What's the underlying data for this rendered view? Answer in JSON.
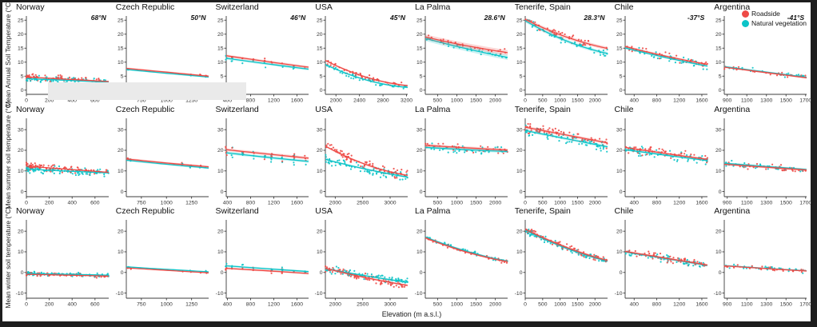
{
  "legend": {
    "items": [
      {
        "label": "Roadside",
        "color": "#ee4a46"
      },
      {
        "label": "Natural vegetation",
        "color": "#0cc4c8"
      }
    ]
  },
  "figure": {
    "xlabel": "Elevation (m a.s.l.)",
    "rows": [
      {
        "key": "annual",
        "ylabel": "Mean Annual Soil Temperature (°C)",
        "ylim": [
          -1.5,
          26.5
        ],
        "yticks": [
          0,
          5,
          10,
          15,
          20,
          25
        ]
      },
      {
        "key": "summer",
        "ylabel": "Mean summer soil temperature (°C)",
        "ylim": [
          -2.5,
          35.5
        ],
        "yticks": [
          0,
          10,
          20,
          30
        ]
      },
      {
        "key": "winter",
        "ylabel": "Mean winter soil temperature (°C)",
        "ylim": [
          -12.5,
          25.5
        ],
        "yticks": [
          -10,
          0,
          10,
          20
        ]
      }
    ],
    "columns": [
      "Norway",
      "Czech Republic",
      "Switzerland",
      "USA",
      "La Palma",
      "Tenerife, Spain",
      "Chile",
      "Argentina"
    ],
    "latitudes": [
      "68°N",
      "50°N",
      "46°N",
      "45°N",
      "28.6°N",
      "28.3°N",
      "-37°S",
      "-41°S"
    ],
    "artifact_overlay": {
      "note": "light gray box obscuring x-axis of row 1 columns 1-3",
      "color": "#eaeaea"
    }
  },
  "chart_data": [
    {
      "type": "scatter",
      "row": 0,
      "col": 0,
      "country": "Norway",
      "latitude": "68°N",
      "xlim": [
        0,
        720
      ],
      "xticks": [
        0,
        200,
        400,
        600
      ],
      "series": [
        {
          "name": "Roadside",
          "trend": [
            4.7,
            3.9,
            3.1
          ]
        },
        {
          "name": "Natural vegetation",
          "trend": [
            4.1,
            3.5,
            2.8
          ]
        }
      ],
      "points": {
        "n": 160,
        "spread": 1.4,
        "xdist": "left"
      },
      "band": 0.25
    },
    {
      "type": "scatter",
      "row": 0,
      "col": 1,
      "country": "Czech Republic",
      "latitude": "50°N",
      "xlim": [
        600,
        1420
      ],
      "xticks": [
        750,
        1000,
        1250
      ],
      "series": [
        {
          "name": "Roadside",
          "trend": [
            7.8,
            6.4,
            5.0
          ]
        },
        {
          "name": "Natural vegetation",
          "trend": [
            7.4,
            6.0,
            4.7
          ]
        }
      ],
      "points": {
        "n": 16,
        "spread": 0.5,
        "xdist": "sites",
        "sites": [
          0.02,
          0.05,
          0.68,
          0.78,
          0.9,
          0.97
        ]
      },
      "band": 0.3
    },
    {
      "type": "scatter",
      "row": 0,
      "col": 2,
      "country": "Switzerland",
      "latitude": "46°N",
      "xlim": [
        380,
        1800
      ],
      "xticks": [
        400,
        800,
        1200,
        1600
      ],
      "series": [
        {
          "name": "Roadside",
          "trend": [
            12.3,
            10.2,
            8.2
          ]
        },
        {
          "name": "Natural vegetation",
          "trend": [
            11.4,
            9.4,
            7.5
          ]
        }
      ],
      "points": {
        "n": 30,
        "spread": 1.5,
        "xdist": "sites",
        "sites": [
          0.0,
          0.07,
          0.2,
          0.33,
          0.47,
          0.55,
          0.68,
          0.82,
          0.96
        ]
      },
      "band": 0.45
    },
    {
      "type": "scatter",
      "row": 0,
      "col": 3,
      "country": "USA",
      "latitude": "45°N",
      "xlim": [
        1820,
        3220
      ],
      "xticks": [
        2000,
        2400,
        2800,
        3200
      ],
      "series": [
        {
          "name": "Roadside",
          "trend": [
            10.6,
            4.6,
            1.6
          ]
        },
        {
          "name": "Natural vegetation",
          "trend": [
            9.2,
            3.6,
            1.0
          ]
        }
      ],
      "points": {
        "n": 90,
        "spread": 1.3,
        "xdist": "uniform"
      },
      "band": 0.35
    },
    {
      "type": "scatter",
      "row": 0,
      "col": 4,
      "country": "La Palma",
      "latitude": "28.6°N",
      "xlim": [
        180,
        2320
      ],
      "xticks": [
        500,
        1000,
        1500,
        2000
      ],
      "series": [
        {
          "name": "Roadside",
          "trend": [
            19.0,
            15.9,
            13.4
          ]
        },
        {
          "name": "Natural vegetation",
          "trend": [
            18.5,
            14.8,
            11.7
          ]
        }
      ],
      "points": {
        "n": 55,
        "spread": 1.3,
        "xdist": "uniform"
      },
      "band": 0.9
    },
    {
      "type": "scatter",
      "row": 0,
      "col": 5,
      "country": "Tenerife, Spain",
      "latitude": "28.3°N",
      "xlim": [
        0,
        2360
      ],
      "xticks": [
        0,
        500,
        1000,
        1500,
        2000
      ],
      "series": [
        {
          "name": "Roadside",
          "trend": [
            25.3,
            19.0,
            14.9
          ]
        },
        {
          "name": "Natural vegetation",
          "trend": [
            24.8,
            17.6,
            13.1
          ]
        }
      ],
      "points": {
        "n": 95,
        "spread": 1.6,
        "xdist": "uniform"
      },
      "band": 0.6
    },
    {
      "type": "scatter",
      "row": 0,
      "col": 6,
      "country": "Chile",
      "latitude": "-37°S",
      "xlim": [
        240,
        1700
      ],
      "xticks": [
        400,
        800,
        1200,
        1600
      ],
      "series": [
        {
          "name": "Roadside",
          "trend": [
            15.6,
            12.1,
            9.2
          ]
        },
        {
          "name": "Natural vegetation",
          "trend": [
            15.1,
            11.6,
            8.6
          ]
        }
      ],
      "points": {
        "n": 85,
        "spread": 1.8,
        "xdist": "uniform"
      },
      "band": 0.4
    },
    {
      "type": "scatter",
      "row": 0,
      "col": 7,
      "country": "Argentina",
      "latitude": "-41°S",
      "xlim": [
        870,
        1710
      ],
      "xticks": [
        900,
        1100,
        1300,
        1500,
        1700
      ],
      "series": [
        {
          "name": "Roadside",
          "trend": [
            8.2,
            6.3,
            4.4
          ]
        },
        {
          "name": "Natural vegetation",
          "trend": [
            8.4,
            6.5,
            4.6
          ]
        }
      ],
      "points": {
        "n": 45,
        "spread": 1.0,
        "xdist": "uniform"
      },
      "band": 0.3
    },
    {
      "type": "scatter",
      "row": 1,
      "col": 0,
      "country": "Norway",
      "xlim": [
        0,
        720
      ],
      "xticks": [
        0,
        200,
        400,
        600
      ],
      "series": [
        {
          "name": "Roadside",
          "trend": [
            12.3,
            10.8,
            9.3
          ]
        },
        {
          "name": "Natural vegetation",
          "trend": [
            10.9,
            9.9,
            9.0
          ]
        }
      ],
      "points": {
        "n": 200,
        "spread": 2.2,
        "xdist": "left"
      },
      "band": 0.3
    },
    {
      "type": "scatter",
      "row": 1,
      "col": 1,
      "country": "Czech Republic",
      "xlim": [
        600,
        1420
      ],
      "xticks": [
        750,
        1000,
        1250
      ],
      "series": [
        {
          "name": "Roadside",
          "trend": [
            15.8,
            13.8,
            12.0
          ]
        },
        {
          "name": "Natural vegetation",
          "trend": [
            15.2,
            13.2,
            11.4
          ]
        }
      ],
      "points": {
        "n": 24,
        "spread": 1.2,
        "xdist": "sites",
        "sites": [
          0.02,
          0.05,
          0.68,
          0.78,
          0.9,
          0.97
        ]
      },
      "band": 0.5
    },
    {
      "type": "scatter",
      "row": 1,
      "col": 2,
      "country": "Switzerland",
      "xlim": [
        380,
        1800
      ],
      "xticks": [
        400,
        800,
        1200,
        1600
      ],
      "series": [
        {
          "name": "Roadside",
          "trend": [
            20.3,
            18.2,
            16.2
          ]
        },
        {
          "name": "Natural vegetation",
          "trend": [
            18.8,
            16.6,
            14.6
          ]
        }
      ],
      "points": {
        "n": 55,
        "spread": 3.2,
        "xdist": "sites",
        "sites": [
          0.0,
          0.07,
          0.2,
          0.33,
          0.47,
          0.55,
          0.68,
          0.82,
          0.96
        ]
      },
      "band": 0.7
    },
    {
      "type": "scatter",
      "row": 1,
      "col": 3,
      "country": "USA",
      "xlim": [
        1820,
        3320
      ],
      "xticks": [
        2000,
        2500,
        3000
      ],
      "series": [
        {
          "name": "Roadside",
          "trend": [
            22.0,
            13.0,
            7.8
          ]
        },
        {
          "name": "Natural vegetation",
          "trend": [
            15.6,
            10.8,
            7.0
          ]
        }
      ],
      "points": {
        "n": 160,
        "spread": 3.0,
        "xdist": "uniform"
      },
      "band": 0.5
    },
    {
      "type": "scatter",
      "row": 1,
      "col": 4,
      "country": "La Palma",
      "xlim": [
        180,
        2320
      ],
      "xticks": [
        500,
        1000,
        1500,
        2000
      ],
      "series": [
        {
          "name": "Roadside",
          "trend": [
            22.4,
            21.2,
            20.1
          ]
        },
        {
          "name": "Natural vegetation",
          "trend": [
            21.4,
            20.3,
            19.4
          ]
        }
      ],
      "points": {
        "n": 70,
        "spread": 2.4,
        "xdist": "uniform"
      },
      "band": 0.7
    },
    {
      "type": "scatter",
      "row": 1,
      "col": 5,
      "country": "Tenerife, Spain",
      "xlim": [
        0,
        2360
      ],
      "xticks": [
        0,
        500,
        1000,
        1500,
        2000
      ],
      "series": [
        {
          "name": "Roadside",
          "trend": [
            31.2,
            27.4,
            23.6
          ]
        },
        {
          "name": "Natural vegetation",
          "trend": [
            29.6,
            25.6,
            21.7
          ]
        }
      ],
      "points": {
        "n": 130,
        "spread": 3.0,
        "xdist": "uniform"
      },
      "band": 0.7
    },
    {
      "type": "scatter",
      "row": 1,
      "col": 6,
      "country": "Chile",
      "xlim": [
        240,
        1700
      ],
      "xticks": [
        400,
        800,
        1200,
        1600
      ],
      "series": [
        {
          "name": "Roadside",
          "trend": [
            21.4,
            18.4,
            15.6
          ]
        },
        {
          "name": "Natural vegetation",
          "trend": [
            20.3,
            17.6,
            15.0
          ]
        }
      ],
      "points": {
        "n": 120,
        "spread": 2.8,
        "xdist": "uniform"
      },
      "band": 0.5
    },
    {
      "type": "scatter",
      "row": 1,
      "col": 7,
      "country": "Argentina",
      "xlim": [
        870,
        1710
      ],
      "xticks": [
        900,
        1100,
        1300,
        1500,
        1700
      ],
      "series": [
        {
          "name": "Roadside",
          "trend": [
            13.2,
            11.8,
            10.4
          ]
        },
        {
          "name": "Natural vegetation",
          "trend": [
            13.7,
            12.2,
            10.7
          ]
        }
      ],
      "points": {
        "n": 60,
        "spread": 2.0,
        "xdist": "uniform"
      },
      "band": 0.5
    },
    {
      "type": "scatter",
      "row": 2,
      "col": 0,
      "country": "Norway",
      "xlim": [
        0,
        720
      ],
      "xticks": [
        0,
        200,
        400,
        600
      ],
      "series": [
        {
          "name": "Roadside",
          "trend": [
            -0.9,
            -1.3,
            -1.8
          ]
        },
        {
          "name": "Natural vegetation",
          "trend": [
            -0.5,
            -0.9,
            -1.3
          ]
        }
      ],
      "points": {
        "n": 170,
        "spread": 1.1,
        "xdist": "left"
      },
      "band": 0.2
    },
    {
      "type": "scatter",
      "row": 2,
      "col": 1,
      "country": "Czech Republic",
      "xlim": [
        600,
        1420
      ],
      "xticks": [
        750,
        1000,
        1250
      ],
      "series": [
        {
          "name": "Roadside",
          "trend": [
            2.2,
            1.0,
            -0.2
          ]
        },
        {
          "name": "Natural vegetation",
          "trend": [
            2.7,
            1.5,
            0.3
          ]
        }
      ],
      "points": {
        "n": 14,
        "spread": 0.5,
        "xdist": "sites",
        "sites": [
          0.02,
          0.05,
          0.68,
          0.78,
          0.9,
          0.97
        ]
      },
      "band": 0.25
    },
    {
      "type": "scatter",
      "row": 2,
      "col": 2,
      "country": "Switzerland",
      "xlim": [
        380,
        1800
      ],
      "xticks": [
        400,
        800,
        1200,
        1600
      ],
      "series": [
        {
          "name": "Roadside",
          "trend": [
            2.0,
            0.8,
            -0.5
          ]
        },
        {
          "name": "Natural vegetation",
          "trend": [
            3.2,
            1.8,
            0.4
          ]
        }
      ],
      "points": {
        "n": 40,
        "spread": 1.6,
        "xdist": "sites",
        "sites": [
          0.0,
          0.07,
          0.2,
          0.33,
          0.47,
          0.55,
          0.68,
          0.82,
          0.96
        ]
      },
      "band": 0.5
    },
    {
      "type": "scatter",
      "row": 2,
      "col": 3,
      "country": "USA",
      "xlim": [
        1820,
        3320
      ],
      "xticks": [
        2000,
        2500,
        3000
      ],
      "series": [
        {
          "name": "Roadside",
          "trend": [
            2.0,
            -2.6,
            -6.3
          ]
        },
        {
          "name": "Natural vegetation",
          "trend": [
            1.8,
            -1.7,
            -4.8
          ]
        }
      ],
      "points": {
        "n": 160,
        "spread": 2.2,
        "xdist": "uniform"
      },
      "band": 0.5
    },
    {
      "type": "scatter",
      "row": 2,
      "col": 4,
      "country": "La Palma",
      "xlim": [
        180,
        2320
      ],
      "xticks": [
        500,
        1000,
        1500,
        2000
      ],
      "series": [
        {
          "name": "Roadside",
          "trend": [
            16.8,
            9.9,
            5.2
          ]
        },
        {
          "name": "Natural vegetation",
          "trend": [
            17.2,
            10.3,
            5.4
          ]
        }
      ],
      "points": {
        "n": 70,
        "spread": 1.2,
        "xdist": "uniform"
      },
      "band": 0.5
    },
    {
      "type": "scatter",
      "row": 2,
      "col": 5,
      "country": "Tenerife, Spain",
      "xlim": [
        0,
        2360
      ],
      "xticks": [
        0,
        500,
        1000,
        1500,
        2000
      ],
      "series": [
        {
          "name": "Roadside",
          "trend": [
            21.0,
            12.2,
            5.8
          ]
        },
        {
          "name": "Natural vegetation",
          "trend": [
            20.6,
            11.7,
            5.5
          ]
        }
      ],
      "points": {
        "n": 130,
        "spread": 2.0,
        "xdist": "uniform"
      },
      "band": 0.6
    },
    {
      "type": "scatter",
      "row": 2,
      "col": 6,
      "country": "Chile",
      "xlim": [
        240,
        1700
      ],
      "xticks": [
        400,
        800,
        1200,
        1600
      ],
      "series": [
        {
          "name": "Roadside",
          "trend": [
            10.2,
            6.9,
            3.6
          ]
        },
        {
          "name": "Natural vegetation",
          "trend": [
            9.9,
            6.7,
            3.4
          ]
        }
      ],
      "points": {
        "n": 120,
        "spread": 2.2,
        "xdist": "uniform"
      },
      "band": 0.5
    },
    {
      "type": "scatter",
      "row": 2,
      "col": 7,
      "country": "Argentina",
      "xlim": [
        870,
        1710
      ],
      "xticks": [
        900,
        1100,
        1300,
        1500,
        1700
      ],
      "series": [
        {
          "name": "Roadside",
          "trend": [
            3.2,
            1.9,
            0.7
          ]
        },
        {
          "name": "Natural vegetation",
          "trend": [
            3.3,
            2.0,
            0.8
          ]
        }
      ],
      "points": {
        "n": 60,
        "spread": 1.3,
        "xdist": "uniform"
      },
      "band": 0.35
    }
  ]
}
